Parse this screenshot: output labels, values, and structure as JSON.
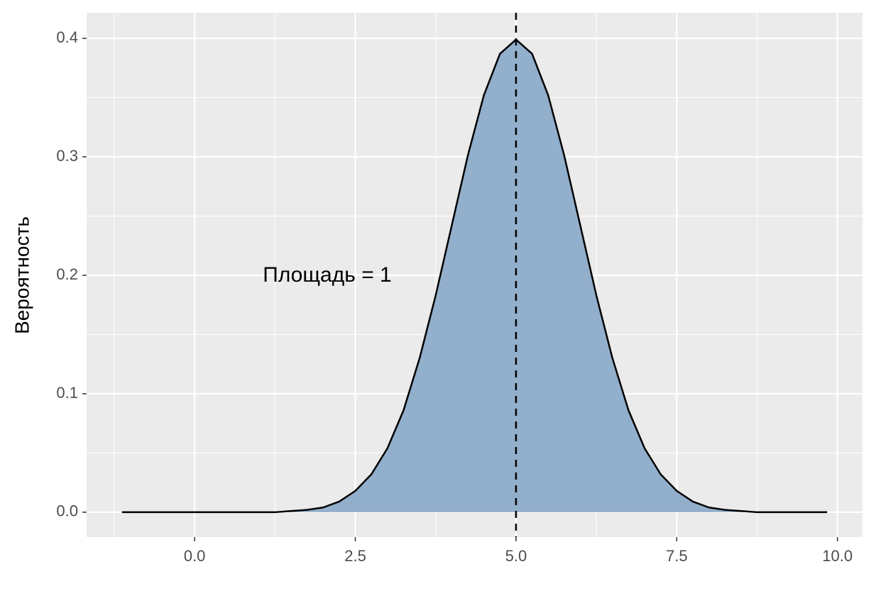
{
  "chart_data": {
    "type": "area",
    "ylabel": "Вероятность",
    "annotation": "Площадь = 1",
    "x": [
      -1.13,
      -1,
      -0.75,
      -0.5,
      -0.25,
      0,
      0.25,
      0.5,
      0.75,
      1,
      1.25,
      1.5,
      1.75,
      2,
      2.25,
      2.5,
      2.75,
      3,
      3.25,
      3.5,
      3.75,
      4,
      4.25,
      4.5,
      4.75,
      5,
      5.25,
      5.5,
      5.75,
      6,
      6.25,
      6.5,
      6.75,
      7,
      7.25,
      7.5,
      7.75,
      8,
      8.25,
      8.5,
      8.75,
      9,
      9.25,
      9.5,
      9.75,
      9.84
    ],
    "values": [
      0,
      0,
      0,
      0,
      0,
      0,
      0,
      0,
      0,
      0,
      0,
      0.001,
      0.002,
      0.004,
      0.009,
      0.018,
      0.032,
      0.054,
      0.086,
      0.13,
      0.183,
      0.242,
      0.301,
      0.352,
      0.387,
      0.399,
      0.387,
      0.352,
      0.301,
      0.242,
      0.183,
      0.13,
      0.086,
      0.054,
      0.032,
      0.018,
      0.009,
      0.004,
      0.002,
      0.001,
      0,
      0,
      0,
      0,
      0,
      0
    ],
    "color": "#92afcc",
    "line_color": "#000000",
    "vline": 5,
    "xlim": [
      -1.68,
      10.39
    ],
    "ylim": [
      -0.021,
      0.4216
    ],
    "xticks": [
      {
        "value": 0,
        "label": "0.0"
      },
      {
        "value": 2.5,
        "label": "2.5"
      },
      {
        "value": 5,
        "label": "5.0"
      },
      {
        "value": 7.5,
        "label": "7.5"
      },
      {
        "value": 10,
        "label": "10.0"
      }
    ],
    "yticks": [
      {
        "value": 0,
        "label": "0.0"
      },
      0.1,
      0.2,
      0.3,
      0.4
    ],
    "xminor": [
      -1.25,
      1.25,
      3.75,
      6.25,
      8.75
    ],
    "yminor": [
      0.05,
      0.15,
      0.25,
      0.35
    ],
    "grid": true
  }
}
